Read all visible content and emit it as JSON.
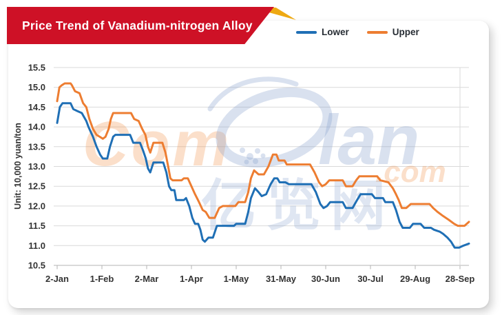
{
  "banner": {
    "title": "Price Trend of Vanadium-nitrogen Alloy"
  },
  "watermark": {
    "part1": "Com",
    "part2": "lan",
    "part3": ".com",
    "cjk": "亿览网",
    "orange_tint": "rgba(238,130,50,0.26)",
    "blue_tint": "rgba(140,165,205,0.33)"
  },
  "colors": {
    "banner_red": "#ce1126",
    "ribbon_gold": "#eea912",
    "grid": "#d9d9d9",
    "axis": "#b3b3b3",
    "tick_text": "#333333"
  },
  "chart_data": {
    "type": "line",
    "title": "Price Trend of Vanadium-nitrogen Alloy",
    "ylabel": "Unit: 10,000 yuan/ton",
    "ylim": [
      10.5,
      15.5
    ],
    "grid": "horizontal",
    "legend_position": "top",
    "y_ticks": [
      "15.5",
      "15.0",
      "14.5",
      "14.0",
      "13.5",
      "13.0",
      "12.5",
      "12.0",
      "11.5",
      "11.0",
      "10.5"
    ],
    "x_ticks": [
      "2-Jan",
      "1-Feb",
      "2-Mar",
      "1-Apr",
      "1-May",
      "31-May",
      "30-Jun",
      "30-Jul",
      "29-Aug",
      "28-Sep"
    ],
    "x_tick_t": [
      0,
      1,
      2,
      3,
      4,
      5,
      6,
      7,
      8,
      9
    ],
    "t_domain": [
      0,
      9.2
    ],
    "series": [
      {
        "name": "Lower",
        "color": "#1f6fb5",
        "points": [
          [
            0,
            14.1
          ],
          [
            0.06,
            14.5
          ],
          [
            0.12,
            14.6
          ],
          [
            0.3,
            14.6
          ],
          [
            0.36,
            14.45
          ],
          [
            0.45,
            14.4
          ],
          [
            0.55,
            14.35
          ],
          [
            0.65,
            14.15
          ],
          [
            0.7,
            14.0
          ],
          [
            0.8,
            13.75
          ],
          [
            0.88,
            13.5
          ],
          [
            0.96,
            13.3
          ],
          [
            1.02,
            13.2
          ],
          [
            1.12,
            13.2
          ],
          [
            1.18,
            13.5
          ],
          [
            1.25,
            13.75
          ],
          [
            1.3,
            13.8
          ],
          [
            1.63,
            13.8
          ],
          [
            1.7,
            13.6
          ],
          [
            1.85,
            13.6
          ],
          [
            1.92,
            13.4
          ],
          [
            1.98,
            13.2
          ],
          [
            2.03,
            12.95
          ],
          [
            2.08,
            12.85
          ],
          [
            2.15,
            13.1
          ],
          [
            2.37,
            13.1
          ],
          [
            2.44,
            12.85
          ],
          [
            2.5,
            12.5
          ],
          [
            2.55,
            12.4
          ],
          [
            2.62,
            12.4
          ],
          [
            2.66,
            12.15
          ],
          [
            2.83,
            12.15
          ],
          [
            2.88,
            12.2
          ],
          [
            2.95,
            12.0
          ],
          [
            3.02,
            11.7
          ],
          [
            3.08,
            11.55
          ],
          [
            3.15,
            11.55
          ],
          [
            3.2,
            11.4
          ],
          [
            3.25,
            11.15
          ],
          [
            3.3,
            11.1
          ],
          [
            3.38,
            11.2
          ],
          [
            3.48,
            11.2
          ],
          [
            3.57,
            11.5
          ],
          [
            3.95,
            11.5
          ],
          [
            4.0,
            11.55
          ],
          [
            4.2,
            11.55
          ],
          [
            4.27,
            11.85
          ],
          [
            4.33,
            12.2
          ],
          [
            4.42,
            12.45
          ],
          [
            4.5,
            12.35
          ],
          [
            4.57,
            12.25
          ],
          [
            4.67,
            12.3
          ],
          [
            4.77,
            12.55
          ],
          [
            4.85,
            12.7
          ],
          [
            4.92,
            12.7
          ],
          [
            4.97,
            12.6
          ],
          [
            5.1,
            12.6
          ],
          [
            5.18,
            12.55
          ],
          [
            5.68,
            12.55
          ],
          [
            5.78,
            12.35
          ],
          [
            5.88,
            12.05
          ],
          [
            5.95,
            11.95
          ],
          [
            6.03,
            12.0
          ],
          [
            6.1,
            12.1
          ],
          [
            6.38,
            12.1
          ],
          [
            6.45,
            11.95
          ],
          [
            6.6,
            11.95
          ],
          [
            6.7,
            12.15
          ],
          [
            6.78,
            12.3
          ],
          [
            7.03,
            12.3
          ],
          [
            7.1,
            12.2
          ],
          [
            7.28,
            12.2
          ],
          [
            7.33,
            12.1
          ],
          [
            7.5,
            12.1
          ],
          [
            7.57,
            11.9
          ],
          [
            7.65,
            11.6
          ],
          [
            7.72,
            11.45
          ],
          [
            7.88,
            11.45
          ],
          [
            7.95,
            11.55
          ],
          [
            8.12,
            11.55
          ],
          [
            8.2,
            11.45
          ],
          [
            8.35,
            11.45
          ],
          [
            8.42,
            11.4
          ],
          [
            8.55,
            11.35
          ],
          [
            8.62,
            11.3
          ],
          [
            8.72,
            11.2
          ],
          [
            8.8,
            11.1
          ],
          [
            8.88,
            10.95
          ],
          [
            8.98,
            10.95
          ],
          [
            9.08,
            11.0
          ],
          [
            9.2,
            11.05
          ]
        ]
      },
      {
        "name": "Upper",
        "color": "#ed7d31",
        "points": [
          [
            0,
            14.65
          ],
          [
            0.05,
            15.0
          ],
          [
            0.1,
            15.05
          ],
          [
            0.17,
            15.1
          ],
          [
            0.3,
            15.1
          ],
          [
            0.33,
            15.05
          ],
          [
            0.4,
            14.9
          ],
          [
            0.5,
            14.85
          ],
          [
            0.58,
            14.6
          ],
          [
            0.65,
            14.5
          ],
          [
            0.72,
            14.2
          ],
          [
            0.8,
            13.95
          ],
          [
            0.88,
            13.8
          ],
          [
            0.95,
            13.75
          ],
          [
            1.02,
            13.7
          ],
          [
            1.08,
            13.75
          ],
          [
            1.15,
            13.95
          ],
          [
            1.2,
            14.2
          ],
          [
            1.25,
            14.35
          ],
          [
            1.65,
            14.35
          ],
          [
            1.72,
            14.2
          ],
          [
            1.82,
            14.15
          ],
          [
            1.9,
            13.95
          ],
          [
            1.97,
            13.8
          ],
          [
            2.03,
            13.5
          ],
          [
            2.08,
            13.35
          ],
          [
            2.15,
            13.6
          ],
          [
            2.35,
            13.6
          ],
          [
            2.42,
            13.35
          ],
          [
            2.48,
            13.0
          ],
          [
            2.53,
            12.7
          ],
          [
            2.58,
            12.65
          ],
          [
            2.78,
            12.65
          ],
          [
            2.83,
            12.7
          ],
          [
            2.92,
            12.7
          ],
          [
            3.0,
            12.5
          ],
          [
            3.08,
            12.3
          ],
          [
            3.17,
            12.1
          ],
          [
            3.25,
            11.9
          ],
          [
            3.32,
            11.85
          ],
          [
            3.4,
            11.7
          ],
          [
            3.52,
            11.7
          ],
          [
            3.62,
            11.95
          ],
          [
            3.7,
            12.0
          ],
          [
            3.98,
            12.0
          ],
          [
            4.05,
            12.1
          ],
          [
            4.2,
            12.1
          ],
          [
            4.27,
            12.35
          ],
          [
            4.33,
            12.7
          ],
          [
            4.4,
            12.9
          ],
          [
            4.5,
            12.8
          ],
          [
            4.62,
            12.8
          ],
          [
            4.72,
            13.0
          ],
          [
            4.82,
            13.3
          ],
          [
            4.9,
            13.3
          ],
          [
            4.95,
            13.15
          ],
          [
            5.08,
            13.15
          ],
          [
            5.13,
            13.05
          ],
          [
            5.65,
            13.05
          ],
          [
            5.75,
            12.85
          ],
          [
            5.85,
            12.6
          ],
          [
            5.92,
            12.5
          ],
          [
            6.0,
            12.55
          ],
          [
            6.08,
            12.65
          ],
          [
            6.38,
            12.65
          ],
          [
            6.45,
            12.5
          ],
          [
            6.6,
            12.5
          ],
          [
            6.68,
            12.65
          ],
          [
            6.75,
            12.75
          ],
          [
            7.15,
            12.75
          ],
          [
            7.22,
            12.65
          ],
          [
            7.4,
            12.6
          ],
          [
            7.5,
            12.45
          ],
          [
            7.57,
            12.3
          ],
          [
            7.63,
            12.15
          ],
          [
            7.7,
            11.95
          ],
          [
            7.8,
            11.95
          ],
          [
            7.9,
            12.05
          ],
          [
            8.32,
            12.05
          ],
          [
            8.4,
            11.95
          ],
          [
            8.5,
            11.85
          ],
          [
            8.62,
            11.75
          ],
          [
            8.75,
            11.65
          ],
          [
            8.87,
            11.55
          ],
          [
            8.95,
            11.5
          ],
          [
            9.1,
            11.5
          ],
          [
            9.2,
            11.6
          ]
        ]
      }
    ]
  }
}
